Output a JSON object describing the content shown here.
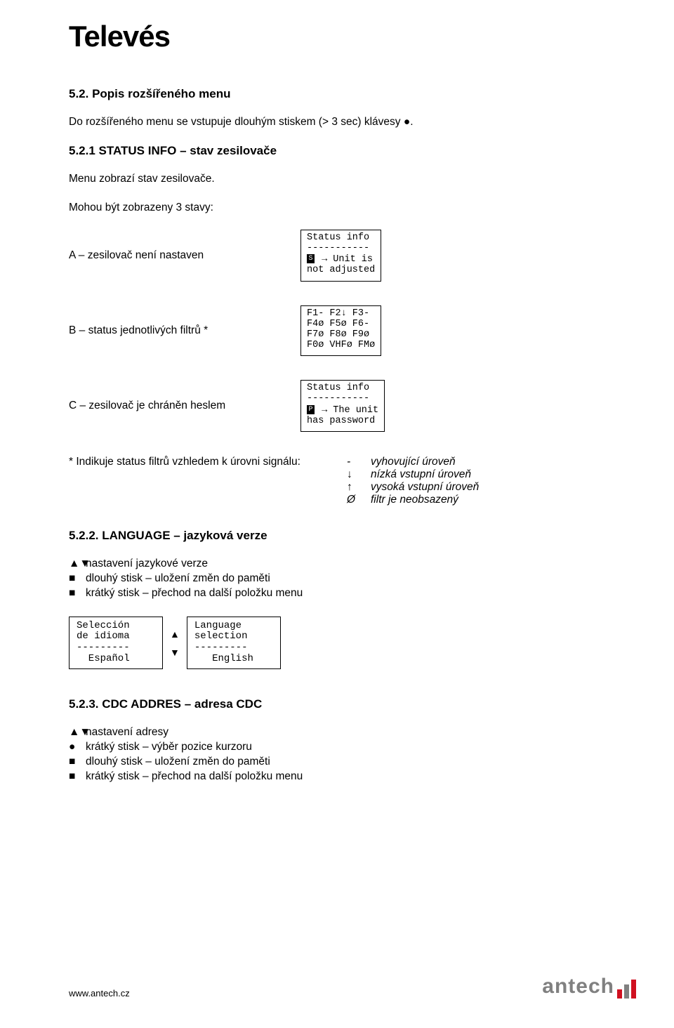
{
  "brand": {
    "name": "Televés",
    "color": "#000000"
  },
  "section_5_2": {
    "title": "5.2. Popis rozšířeného menu",
    "intro": "Do rozšířeného menu se vstupuje dlouhým stiskem (> 3 sec) klávesy ●."
  },
  "section_5_2_1": {
    "title": "5.2.1 STATUS INFO – stav zesilovače",
    "intro": "Menu zobrazí stav zesilovače.",
    "states_intro": "Mohou být zobrazeny 3 stavy:",
    "state_a_label": "A – zesilovač není nastaven",
    "state_a_lcd": {
      "l1": "Status info",
      "l2": "-----------",
      "glyph": "S",
      "l3_rest": " → Unit is",
      "l4": "not adjusted"
    },
    "state_b_label": "B – status jednotlivých filtrů *",
    "state_b_lcd": {
      "l1": "F1- F2↓ F3-",
      "l2": "F4ø F5ø F6-",
      "l3": "F7ø F8ø F9ø",
      "l4": "F0ø VHFø FMø"
    },
    "state_c_label": "C – zesilovač je chráněn heslem",
    "state_c_lcd": {
      "l1": "Status info",
      "l2": "-----------",
      "glyph": "P",
      "l3_rest": " → The unit",
      "l4": "has password"
    },
    "legend_intro": "* Indikuje status filtrů vzhledem k úrovni signálu:",
    "legend": [
      {
        "sym": "-",
        "desc": "vyhovující úroveň"
      },
      {
        "sym": "↓",
        "desc": "nízká vstupní úroveň"
      },
      {
        "sym": "↑",
        "desc": "vysoká vstupní úroveň"
      },
      {
        "sym": "Ø",
        "desc": "filtr je neobsazený"
      }
    ]
  },
  "section_5_2_2": {
    "title": "5.2.2. LANGUAGE – jazyková verze",
    "bullets": [
      {
        "sym": "▲▼",
        "text": "nastavení jazykové verze"
      },
      {
        "sym": "■",
        "text": "dlouhý stisk – uložení změn do paměti"
      },
      {
        "sym": "■",
        "text": "krátký stisk – přechod na další položku menu"
      }
    ],
    "lcd_left": {
      "l1": "Selección",
      "l2": "de idioma",
      "l3": "---------",
      "l4": "  Español"
    },
    "lcd_right": {
      "l1": "Language",
      "l2": "selection",
      "l3": "---------",
      "l4": "   English"
    },
    "arrow_up": "▲",
    "arrow_down": "▼"
  },
  "section_5_2_3": {
    "title": "5.2.3. CDC ADDRES – adresa CDC",
    "bullets": [
      {
        "sym": "▲▼",
        "text": "nastavení adresy"
      },
      {
        "sym": "●",
        "text": "krátký stisk – výběr pozice kurzoru"
      },
      {
        "sym": "■",
        "text": "dlouhý stisk – uložení změn do paměti"
      },
      {
        "sym": "■",
        "text": "krátký stisk – přechod na další položku menu"
      }
    ]
  },
  "footer": {
    "url": "www.antech.cz",
    "antech_text": "antech",
    "antech_gray": "#808080",
    "bar_colors": [
      "#d01020",
      "#808080",
      "#d01020"
    ]
  }
}
